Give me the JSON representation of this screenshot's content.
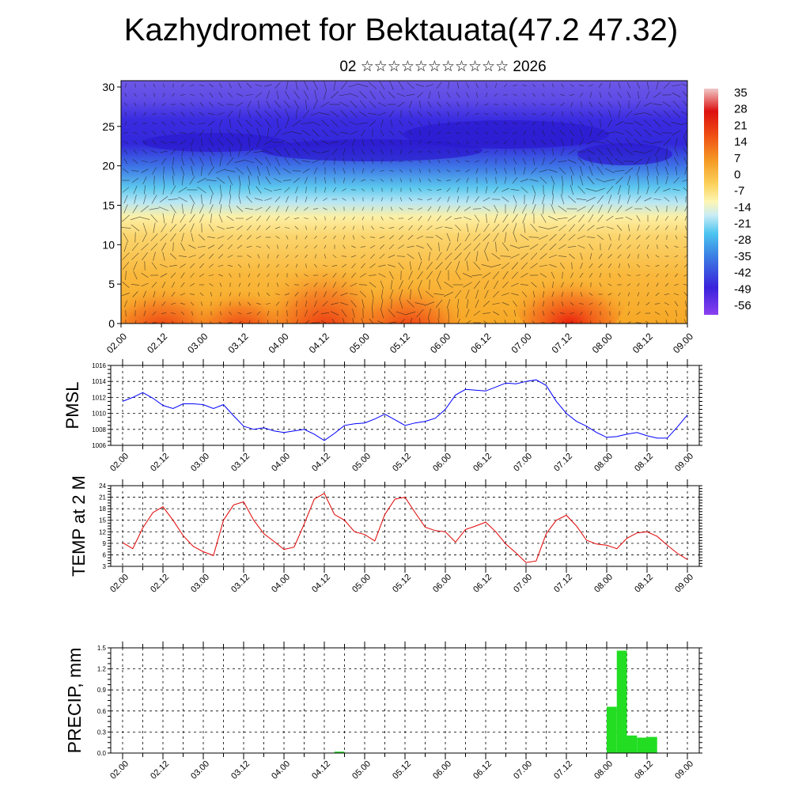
{
  "header": {
    "title": "Kazhydromet for Bektauata(47.2 47.32)",
    "subtitle": "02 ☆☆☆☆☆☆☆☆☆☆☆ 2026"
  },
  "chart_data": [
    {
      "type": "heatmap",
      "name": "cross-section",
      "x_tick_labels": [
        "02.00",
        "02.12",
        "03.00",
        "03.12",
        "04.00",
        "04.12",
        "05.00",
        "05.12",
        "06.00",
        "06.12",
        "07.00",
        "07.12",
        "08.00",
        "08.12",
        "09.00"
      ],
      "y_ticks": [
        0,
        5,
        10,
        15,
        20,
        25,
        30
      ],
      "ylim": [
        0,
        30.8
      ],
      "colorbar_labels": [
        35,
        28,
        21,
        14,
        7,
        0,
        -7,
        -14,
        -21,
        -28,
        -35,
        -42,
        -49,
        -56
      ],
      "colorbar_range": [
        -63,
        42
      ],
      "overlay": "wind vectors",
      "colors": {
        "warm": "#e8130a",
        "mid": "#fae38a",
        "cold": "#2d19d8"
      }
    },
    {
      "type": "line",
      "name": "pmsl",
      "ylabel": "PMSL",
      "ylim": [
        1006,
        1016
      ],
      "y_ticks": [
        1006,
        1008,
        1010,
        1012,
        1014,
        1016
      ],
      "x_tick_labels": [
        "02.00",
        "02.12",
        "03.00",
        "03.12",
        "04.00",
        "04.12",
        "05.00",
        "05.12",
        "06.00",
        "06.12",
        "07.00",
        "07.12",
        "08.00",
        "08.12",
        "09.00"
      ],
      "color": "#0000ff",
      "x": [
        0,
        3,
        6,
        9,
        12,
        15,
        18,
        21,
        24,
        27,
        30,
        33,
        36,
        39,
        42,
        45,
        48,
        51,
        54,
        57,
        60,
        63,
        66,
        69,
        72,
        75,
        78,
        81,
        84,
        87,
        90,
        93,
        96,
        99,
        102,
        105,
        108,
        111,
        114,
        117,
        120,
        123,
        126,
        129,
        132,
        135,
        138,
        141,
        144,
        147,
        150,
        153,
        156,
        159,
        162,
        165,
        168
      ],
      "values": [
        1011.5,
        1012.0,
        1012.6,
        1011.9,
        1011.0,
        1010.6,
        1011.2,
        1011.2,
        1011.1,
        1010.6,
        1011.1,
        1009.7,
        1008.4,
        1008.0,
        1008.2,
        1007.8,
        1007.6,
        1007.8,
        1008.0,
        1007.4,
        1006.6,
        1007.5,
        1008.5,
        1008.7,
        1008.8,
        1009.3,
        1009.9,
        1009.2,
        1008.5,
        1008.8,
        1009.0,
        1009.4,
        1010.5,
        1012.3,
        1013.0,
        1012.9,
        1012.8,
        1013.3,
        1013.8,
        1013.7,
        1014.0,
        1014.2,
        1013.5,
        1011.5,
        1010.0,
        1009.0,
        1008.4,
        1007.6,
        1007.0,
        1007.1,
        1007.4,
        1007.6,
        1007.2,
        1006.9,
        1006.9,
        1008.3,
        1009.8
      ]
    },
    {
      "type": "line",
      "name": "temp",
      "ylabel": "TEMP at 2 M",
      "ylim": [
        3,
        24
      ],
      "y_ticks": [
        3,
        6,
        9,
        12,
        15,
        18,
        21,
        24
      ],
      "x_tick_labels": [
        "02.00",
        "02.12",
        "03.00",
        "03.12",
        "04.00",
        "04.12",
        "05.00",
        "05.12",
        "06.00",
        "06.12",
        "07.00",
        "07.12",
        "08.00",
        "08.12",
        "09.00"
      ],
      "color": "#e00000",
      "x": [
        0,
        3,
        6,
        9,
        12,
        15,
        18,
        21,
        24,
        27,
        30,
        33,
        36,
        39,
        42,
        45,
        48,
        51,
        54,
        57,
        60,
        63,
        66,
        69,
        72,
        75,
        78,
        81,
        84,
        87,
        90,
        93,
        96,
        99,
        102,
        105,
        108,
        111,
        114,
        117,
        120,
        123,
        126,
        129,
        132,
        135,
        138,
        141,
        144,
        147,
        150,
        153,
        156,
        159,
        162,
        165,
        168
      ],
      "values": [
        9.2,
        7.6,
        13.0,
        17.0,
        18.5,
        15.0,
        11.0,
        8.2,
        6.8,
        5.8,
        15.0,
        19.0,
        19.8,
        15.0,
        11.5,
        9.5,
        7.4,
        8.0,
        14.0,
        20.5,
        22.0,
        16.5,
        15.0,
        12.0,
        11.3,
        9.6,
        16.5,
        20.5,
        21.0,
        17.0,
        13.2,
        12.3,
        12.0,
        9.3,
        12.6,
        13.5,
        14.5,
        12.0,
        8.8,
        6.5,
        4.0,
        4.4,
        11.5,
        15.0,
        16.3,
        13.5,
        9.8,
        8.8,
        8.5,
        7.6,
        10.3,
        11.7,
        12.0,
        10.8,
        8.5,
        6.4,
        4.8
      ]
    },
    {
      "type": "bar",
      "name": "precip",
      "ylabel": "PRECIP, mm",
      "ylim": [
        0,
        1.5
      ],
      "y_ticks": [
        0.0,
        0.3,
        0.6,
        0.9,
        1.2,
        1.5
      ],
      "y_tick_labels": [
        "0.0",
        "0.3",
        "0.6",
        "0.9",
        "1.2",
        "1.5"
      ],
      "x_tick_labels": [
        "02.00",
        "02.12",
        "03.00",
        "03.12",
        "04.00",
        "04.12",
        "05.00",
        "05.12",
        "06.00",
        "06.12",
        "07.00",
        "07.12",
        "08.00",
        "08.12",
        "09.00"
      ],
      "color": "#22dd22",
      "x": [
        63,
        144,
        147,
        150,
        153,
        156
      ],
      "values": [
        0.02,
        0.66,
        1.46,
        0.25,
        0.22,
        0.23
      ]
    }
  ]
}
